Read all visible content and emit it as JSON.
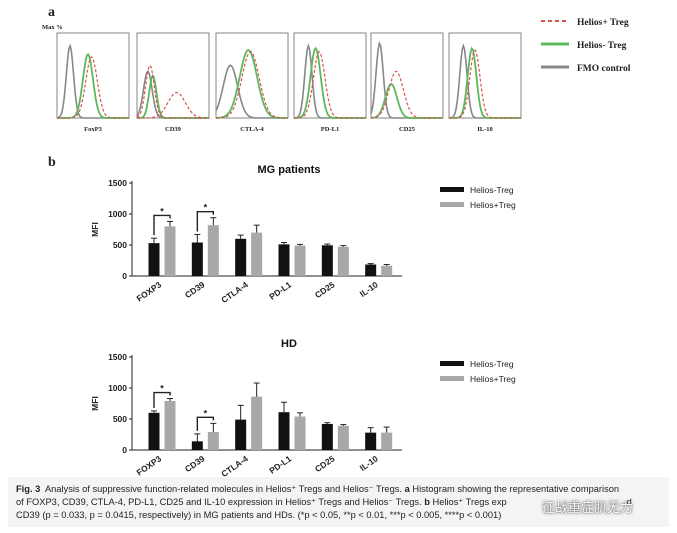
{
  "panel_a": {
    "label": "a",
    "y_axis_label": "Max %",
    "legend": [
      {
        "label": "Helios+ Treg",
        "color": "#d9534f",
        "style": "dashed"
      },
      {
        "label": "Helios- Treg",
        "color": "#5cb85c",
        "style": "solid"
      },
      {
        "label": "FMO control",
        "color": "#888888",
        "style": "solid"
      }
    ],
    "markers": [
      "FoxP3",
      "CD39",
      "CTLA-4",
      "PD-L1",
      "CD25",
      "IL-10"
    ]
  },
  "panel_b": {
    "label": "b"
  },
  "chart_data": [
    {
      "type": "bar",
      "title": "MG patients",
      "ylabel": "MFI",
      "ylim": [
        0,
        1500
      ],
      "yticks": [
        "0",
        "500",
        "1000",
        "1500"
      ],
      "categories": [
        "FOXP3",
        "CD39",
        "CTLA-4",
        "PD-L1",
        "CD25",
        "IL-10"
      ],
      "series": [
        {
          "name": "Helios-Treg",
          "color": "#111111",
          "values": [
            530,
            540,
            600,
            510,
            495,
            185
          ],
          "errors": [
            80,
            130,
            60,
            30,
            20,
            15
          ]
        },
        {
          "name": "Helios+Treg",
          "color": "#a8a8a8",
          "values": [
            800,
            820,
            700,
            490,
            470,
            165
          ],
          "errors": [
            80,
            120,
            120,
            20,
            20,
            20
          ]
        }
      ],
      "significance": [
        "*",
        "*"
      ]
    },
    {
      "type": "bar",
      "title": "HD",
      "ylabel": "MFI",
      "ylim": [
        0,
        1500
      ],
      "yticks": [
        "0",
        "500",
        "1000",
        "1500"
      ],
      "categories": [
        "FOXP3",
        "CD39",
        "CTLA-4",
        "PD-L1",
        "CD25",
        "IL-10"
      ],
      "series": [
        {
          "name": "Helios-Treg",
          "color": "#111111",
          "values": [
            600,
            140,
            490,
            610,
            420,
            280
          ],
          "errors": [
            30,
            120,
            230,
            160,
            20,
            80
          ]
        },
        {
          "name": "Helios+Treg",
          "color": "#a8a8a8",
          "values": [
            790,
            290,
            860,
            540,
            390,
            280
          ],
          "errors": [
            40,
            140,
            220,
            60,
            20,
            90
          ]
        }
      ],
      "significance": [
        "*",
        "*"
      ]
    }
  ],
  "caption": {
    "fig_label": "Fig. 3",
    "line1": "Analysis of suppressive function-related molecules in Helios⁺ Tregs and Helios⁻ Tregs.",
    "label_a": "a",
    "line1b": "Histogram showing the representative comparison",
    "line2": "of FOXP3, CD39, CTLA-4, PD-L1, CD25 and IL-10 expression in Helios⁺ Tregs and Helios⁻ Tregs.",
    "label_b": "b",
    "line2b": "Helios⁺ Tregs exp",
    "line2c": "d",
    "line3": "CD39 (p = 0.033, p = 0.0415, respectively) in MG patients and HDs. (*p < 0.05, **p < 0.01, ***p < 0.005, ****p < 0.001)"
  },
  "watermark": "征战重症肌无力"
}
